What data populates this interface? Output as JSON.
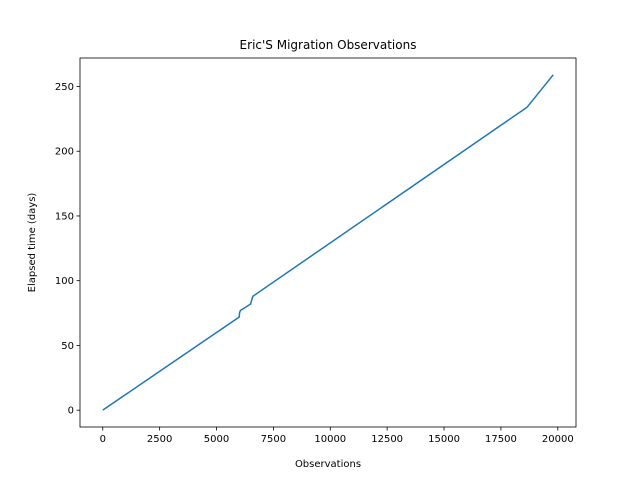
{
  "chart_data": {
    "type": "line",
    "title": "Eric'S Migration Observations",
    "xlabel": "Observations",
    "ylabel": "Elapsed time (days)",
    "xlim": [
      -1000,
      20800
    ],
    "ylim": [
      -13,
      272
    ],
    "xticks": [
      0,
      2500,
      5000,
      7500,
      10000,
      12500,
      15000,
      17500,
      20000
    ],
    "yticks": [
      0,
      50,
      100,
      150,
      200,
      250
    ],
    "grid": false,
    "series_color": "#1f77b4",
    "x": [
      0,
      6000,
      6010,
      6050,
      6500,
      6560,
      6600,
      18650,
      19800
    ],
    "y": [
      0,
      72,
      75,
      77,
      82,
      86,
      88,
      234,
      259
    ]
  }
}
